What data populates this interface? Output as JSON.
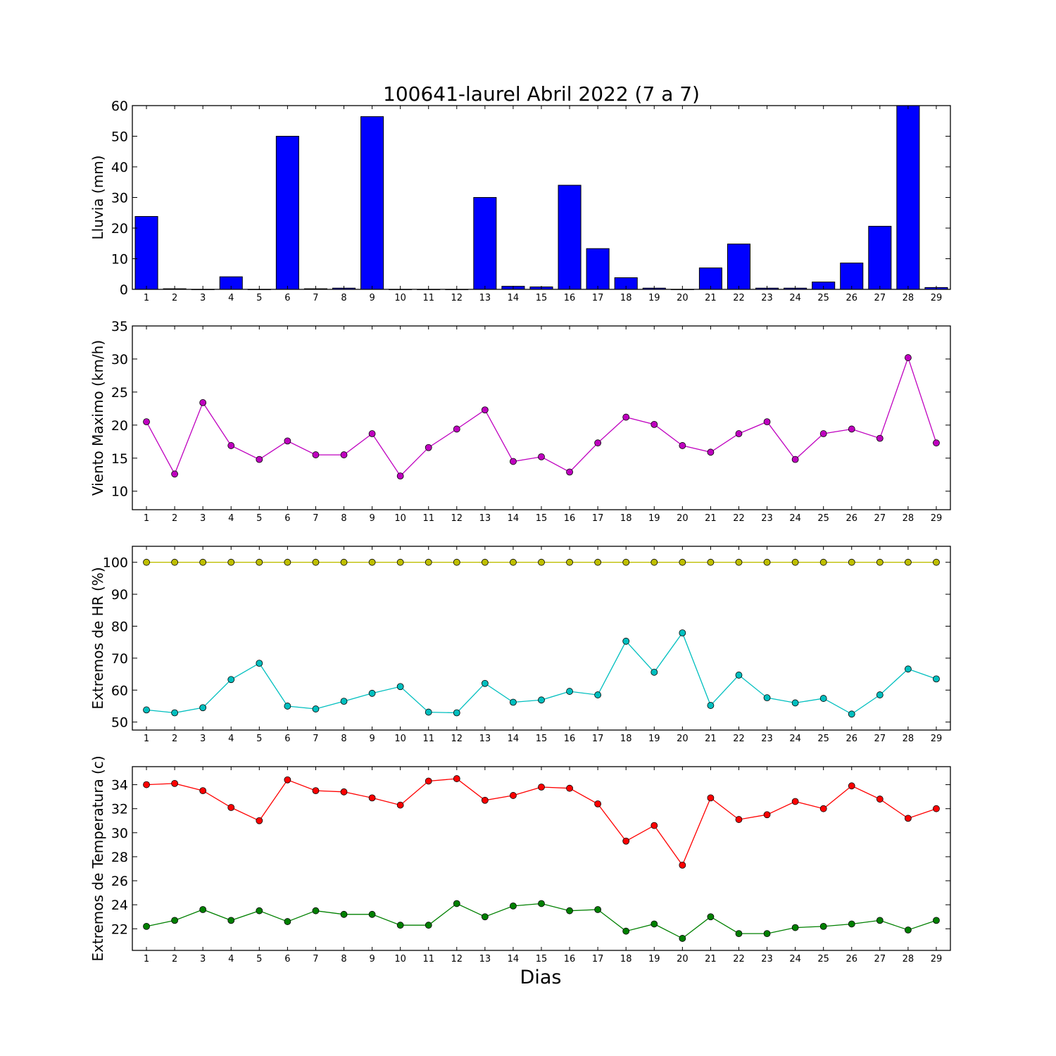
{
  "chart_data": [
    {
      "type": "bar",
      "title": "100641-laurel Abril 2022  (7 a 7)",
      "ylabel": "Lluvia (mm)",
      "xlabel": "",
      "ylim": [
        0,
        60
      ],
      "yticks": [
        0,
        10,
        20,
        30,
        40,
        50,
        60
      ],
      "categories": [
        "1",
        "2",
        "3",
        "4",
        "5",
        "6",
        "7",
        "8",
        "9",
        "10",
        "11",
        "12",
        "13",
        "14",
        "15",
        "16",
        "17",
        "18",
        "19",
        "20",
        "21",
        "22",
        "23",
        "24",
        "25",
        "26",
        "27",
        "28",
        "29"
      ],
      "series": [
        {
          "color": "#0000ff",
          "values": [
            23.8,
            0.2,
            0,
            4.1,
            0,
            50.0,
            0.2,
            0.4,
            56.4,
            0,
            0,
            0,
            30.0,
            1.0,
            0.8,
            34.0,
            13.3,
            3.8,
            0.4,
            0,
            7.0,
            14.8,
            0.4,
            0.4,
            2.4,
            8.6,
            20.6,
            60.0,
            0.6
          ]
        }
      ],
      "grid": false
    },
    {
      "type": "line",
      "title": "",
      "ylabel": "Viento Maximo (km/h)",
      "xlabel": "",
      "ylim": [
        7.2,
        35
      ],
      "yticks": [
        10,
        15,
        20,
        25,
        30,
        35
      ],
      "categories": [
        "1",
        "2",
        "3",
        "4",
        "5",
        "6",
        "7",
        "8",
        "9",
        "10",
        "11",
        "12",
        "13",
        "14",
        "15",
        "16",
        "17",
        "18",
        "19",
        "20",
        "21",
        "22",
        "23",
        "24",
        "25",
        "26",
        "27",
        "28",
        "29"
      ],
      "series": [
        {
          "color": "#bf00bf",
          "values": [
            20.5,
            12.6,
            23.4,
            16.9,
            14.8,
            17.6,
            15.5,
            15.5,
            18.7,
            12.3,
            16.6,
            19.4,
            22.3,
            14.5,
            15.2,
            12.9,
            17.3,
            21.2,
            20.1,
            16.9,
            15.9,
            18.7,
            20.5,
            14.8,
            18.7,
            19.4,
            18.0,
            30.2,
            17.3
          ]
        }
      ],
      "grid": false
    },
    {
      "type": "line",
      "title": "",
      "ylabel": "Extremos de HR (%)",
      "xlabel": "",
      "ylim": [
        47.5,
        105
      ],
      "yticks": [
        50,
        60,
        70,
        80,
        90,
        100
      ],
      "categories": [
        "1",
        "2",
        "3",
        "4",
        "5",
        "6",
        "7",
        "8",
        "9",
        "10",
        "11",
        "12",
        "13",
        "14",
        "15",
        "16",
        "17",
        "18",
        "19",
        "20",
        "21",
        "22",
        "23",
        "24",
        "25",
        "26",
        "27",
        "28",
        "29"
      ],
      "series": [
        {
          "color": "#bfbf00",
          "values": [
            100,
            100,
            100,
            100,
            100,
            100,
            100,
            100,
            100,
            100,
            100,
            100,
            100,
            100,
            100,
            100,
            100,
            100,
            100,
            100,
            100,
            100,
            100,
            100,
            100,
            100,
            100,
            100,
            100
          ]
        },
        {
          "color": "#00bfbf",
          "values": [
            53.8,
            52.9,
            54.5,
            63.3,
            68.4,
            55.0,
            54.1,
            56.5,
            59.0,
            61.1,
            53.1,
            52.9,
            62.1,
            56.2,
            56.9,
            59.6,
            58.5,
            75.3,
            65.6,
            77.9,
            55.2,
            64.7,
            57.6,
            56.0,
            57.4,
            52.5,
            58.5,
            66.6,
            63.5
          ]
        }
      ],
      "grid": false
    },
    {
      "type": "line",
      "title": "",
      "ylabel": "Extremos de Temperatura (c)",
      "xlabel": "Dias",
      "ylim": [
        20.2,
        35.5
      ],
      "yticks": [
        22,
        24,
        26,
        28,
        30,
        32,
        34
      ],
      "categories": [
        "1",
        "2",
        "3",
        "4",
        "5",
        "6",
        "7",
        "8",
        "9",
        "10",
        "11",
        "12",
        "13",
        "14",
        "15",
        "16",
        "17",
        "18",
        "19",
        "20",
        "21",
        "22",
        "23",
        "24",
        "25",
        "26",
        "27",
        "28",
        "29"
      ],
      "series": [
        {
          "color": "#ff0000",
          "values": [
            34.0,
            34.1,
            33.5,
            32.1,
            31.0,
            34.4,
            33.5,
            33.4,
            32.9,
            32.3,
            34.3,
            34.5,
            32.7,
            33.1,
            33.8,
            33.7,
            32.4,
            29.3,
            30.6,
            27.3,
            32.9,
            31.1,
            31.5,
            32.6,
            32.0,
            33.9,
            32.8,
            31.2,
            32.0
          ]
        },
        {
          "color": "#008000",
          "values": [
            22.2,
            22.7,
            23.6,
            22.7,
            23.5,
            22.6,
            23.5,
            23.2,
            23.2,
            22.3,
            22.3,
            24.1,
            23.0,
            23.9,
            24.1,
            23.5,
            23.6,
            21.8,
            22.4,
            21.2,
            23.0,
            21.6,
            21.6,
            22.1,
            22.2,
            22.4,
            22.7,
            21.9,
            22.7
          ]
        }
      ],
      "grid": false
    }
  ]
}
